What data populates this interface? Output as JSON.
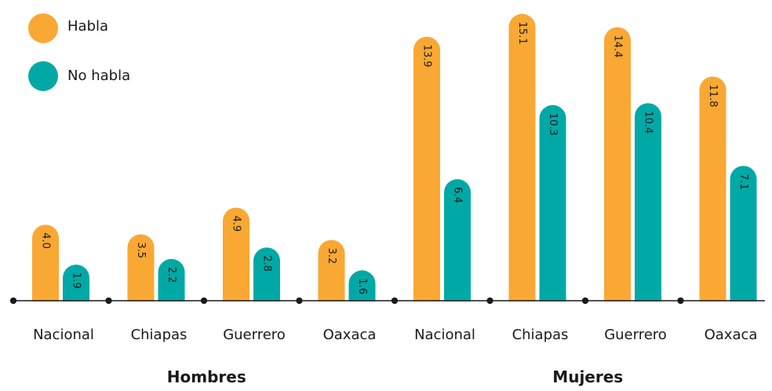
{
  "chart_data": {
    "type": "bar",
    "groups": [
      {
        "label": "Hombres",
        "categories": [
          "Nacional",
          "Chiapas",
          "Guerrero",
          "Oaxaca"
        ]
      },
      {
        "label": "Mujeres",
        "categories": [
          "Nacional",
          "Chiapas",
          "Guerrero",
          "Oaxaca"
        ]
      }
    ],
    "series": [
      {
        "name": "Habla",
        "color": "#F9A833",
        "values": [
          4.0,
          3.5,
          4.9,
          3.2,
          13.9,
          15.1,
          14.4,
          11.8
        ],
        "labels": [
          "4.0",
          "3.5",
          "4.9",
          "3.2",
          "13.9",
          "15.1",
          "14.4",
          "11.8"
        ]
      },
      {
        "name": "No habla",
        "color": "#00A9A5",
        "values": [
          1.9,
          2.2,
          2.8,
          1.6,
          6.4,
          10.3,
          10.4,
          7.1
        ],
        "labels": [
          "1.9",
          "2.2",
          "2.8",
          "1.6",
          "6.4",
          "10.3",
          "10.4",
          "7.1"
        ]
      }
    ],
    "ylim": [
      0,
      15.5
    ],
    "legend": "top-left",
    "grid": false
  }
}
